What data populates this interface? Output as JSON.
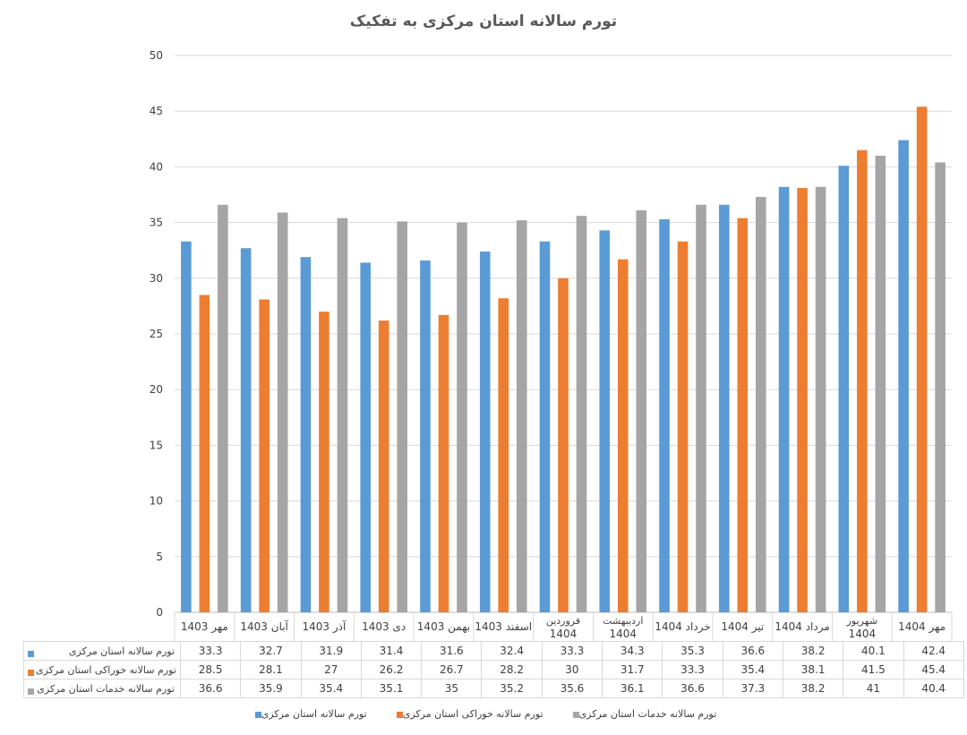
{
  "chart_data": {
    "type": "bar",
    "title": "تورم سالانه استان مرکزی به تفکیک",
    "categories": [
      "مهر 1403",
      "آبان 1403",
      "آذر 1403",
      "دی 1403",
      "بهمن 1403",
      "اسفند 1403",
      "فروردین 1404",
      "اردیبهشت 1404",
      "خرداد 1404",
      "تیر 1404",
      "مرداد 1404",
      "شهریور 1404",
      "مهر 1404"
    ],
    "ylim": [
      0,
      50
    ],
    "yticks": [
      0,
      5,
      10,
      15,
      20,
      25,
      30,
      35,
      40,
      45,
      50
    ],
    "grid": true,
    "legend": "bottom",
    "series": [
      {
        "name": "تورم سالانه استان مرکزی",
        "color": "#5b9bd5",
        "values": [
          33.3,
          32.7,
          31.9,
          31.4,
          31.6,
          32.4,
          33.3,
          34.3,
          35.3,
          36.6,
          38.2,
          40.1,
          42.4
        ]
      },
      {
        "name": "تورم سالانه خوراکی استان مرکزی",
        "color": "#ed7d31",
        "values": [
          28.5,
          28.1,
          27,
          26.2,
          26.7,
          28.2,
          30,
          31.7,
          33.3,
          35.4,
          38.1,
          41.5,
          45.4
        ]
      },
      {
        "name": "تورم سالانه خدمات استان مرکزی",
        "color": "#a5a5a5",
        "values": [
          36.6,
          35.9,
          35.4,
          35.1,
          35,
          35.2,
          35.6,
          36.1,
          36.6,
          37.3,
          38.2,
          41,
          40.4
        ]
      }
    ]
  }
}
